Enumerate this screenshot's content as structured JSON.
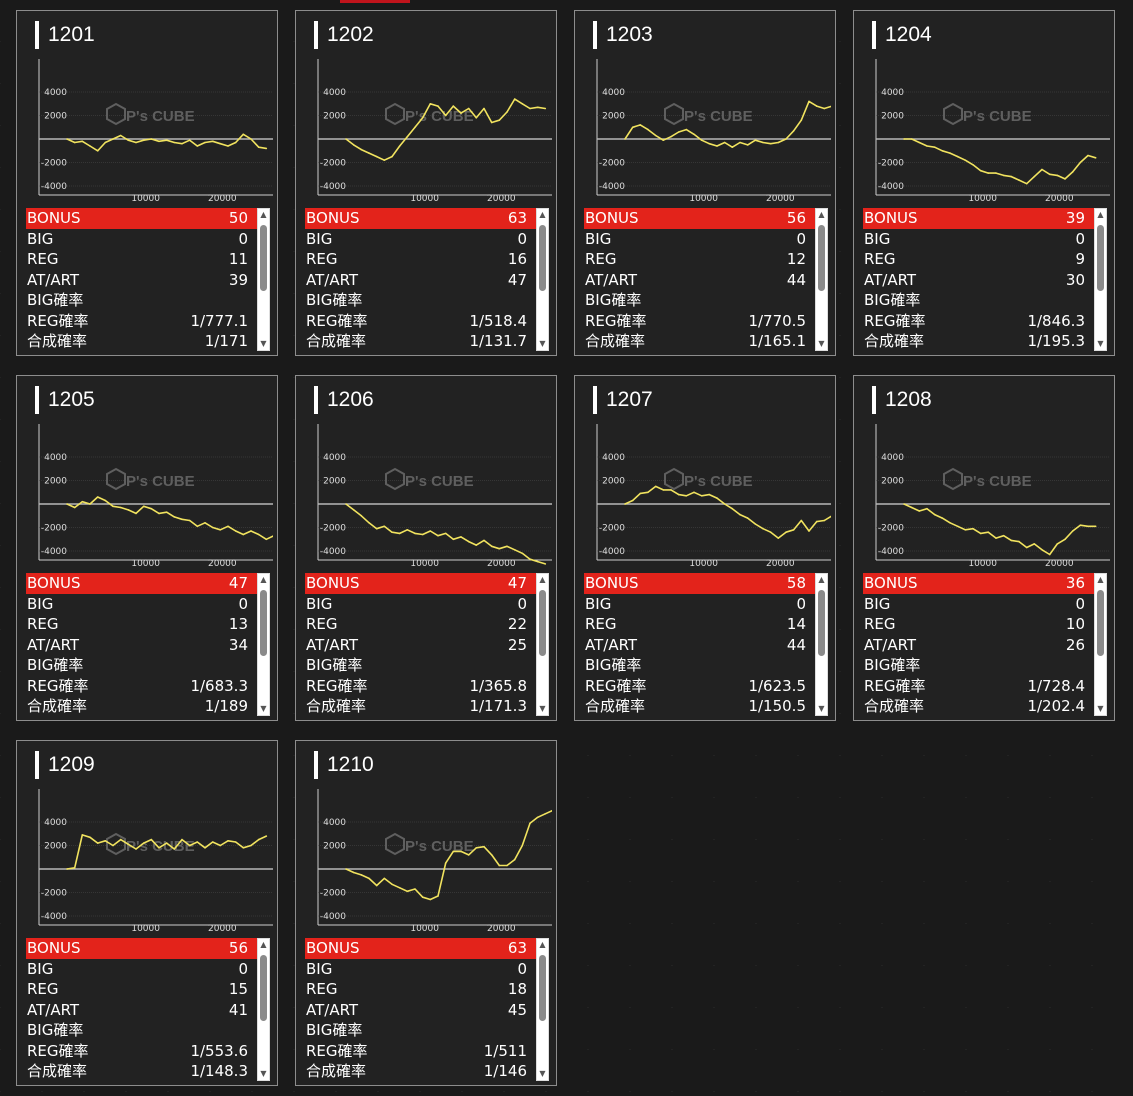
{
  "watermark": "P's CUBE",
  "accent": "#e3231b",
  "line_color": "#f1e35f",
  "labels": {
    "bonus": "BONUS",
    "big": "BIG",
    "reg": "REG",
    "atart": "AT/ART",
    "big_rate": "BIG確率",
    "reg_rate": "REG確率",
    "total_rate": "合成確率"
  },
  "y_ticks": [
    "4000",
    "2000",
    "-2000",
    "-4000"
  ],
  "x_ticks": [
    "10000",
    "20000"
  ],
  "machines": [
    {
      "id": "1201",
      "bonus": "50",
      "big": "0",
      "reg": "11",
      "atart": "39",
      "big_rate": "",
      "reg_rate": "1/777.1",
      "total_rate": "1/171"
    },
    {
      "id": "1202",
      "bonus": "63",
      "big": "0",
      "reg": "16",
      "atart": "47",
      "big_rate": "",
      "reg_rate": "1/518.4",
      "total_rate": "1/131.7"
    },
    {
      "id": "1203",
      "bonus": "56",
      "big": "0",
      "reg": "12",
      "atart": "44",
      "big_rate": "",
      "reg_rate": "1/770.5",
      "total_rate": "1/165.1"
    },
    {
      "id": "1204",
      "bonus": "39",
      "big": "0",
      "reg": "9",
      "atart": "30",
      "big_rate": "",
      "reg_rate": "1/846.3",
      "total_rate": "1/195.3"
    },
    {
      "id": "1205",
      "bonus": "47",
      "big": "0",
      "reg": "13",
      "atart": "34",
      "big_rate": "",
      "reg_rate": "1/683.3",
      "total_rate": "1/189"
    },
    {
      "id": "1206",
      "bonus": "47",
      "big": "0",
      "reg": "22",
      "atart": "25",
      "big_rate": "",
      "reg_rate": "1/365.8",
      "total_rate": "1/171.3"
    },
    {
      "id": "1207",
      "bonus": "58",
      "big": "0",
      "reg": "14",
      "atart": "44",
      "big_rate": "",
      "reg_rate": "1/623.5",
      "total_rate": "1/150.5"
    },
    {
      "id": "1208",
      "bonus": "36",
      "big": "0",
      "reg": "10",
      "atart": "26",
      "big_rate": "",
      "reg_rate": "1/728.4",
      "total_rate": "1/202.4"
    },
    {
      "id": "1209",
      "bonus": "56",
      "big": "0",
      "reg": "15",
      "atart": "41",
      "big_rate": "",
      "reg_rate": "1/553.6",
      "total_rate": "1/148.3"
    },
    {
      "id": "1210",
      "bonus": "63",
      "big": "0",
      "reg": "18",
      "atart": "45",
      "big_rate": "",
      "reg_rate": "1/511",
      "total_rate": "1/146"
    }
  ],
  "chart_data": [
    {
      "type": "line",
      "title": "1201",
      "xlim": [
        0,
        30000
      ],
      "ylim": [
        -5000,
        5000
      ],
      "x": [
        0,
        1000,
        2000,
        3000,
        4000,
        5000,
        6000,
        7000,
        8000,
        9000,
        10000,
        11000,
        12000,
        13000,
        14000,
        15000,
        16000,
        17000,
        18000,
        19000,
        20000,
        21000,
        22000,
        23000,
        24000,
        25000,
        26000
      ],
      "y": [
        0,
        -300,
        -200,
        -600,
        -1000,
        -300,
        0,
        300,
        -100,
        -300,
        -100,
        0,
        -200,
        -100,
        -300,
        -400,
        -100,
        -600,
        -300,
        -200,
        -400,
        -600,
        -300,
        400,
        0,
        -700,
        -800
      ]
    },
    {
      "type": "line",
      "title": "1202",
      "xlim": [
        0,
        30000
      ],
      "ylim": [
        -5000,
        5000
      ],
      "x": [
        0,
        1000,
        2000,
        3000,
        4000,
        5000,
        6000,
        7000,
        8000,
        9000,
        10000,
        11000,
        12000,
        13000,
        14000,
        15000,
        16000,
        17000,
        18000,
        19000,
        20000,
        21000,
        22000,
        23000,
        24000,
        25000,
        26000
      ],
      "y": [
        0,
        -500,
        -900,
        -1200,
        -1500,
        -1800,
        -1500,
        -600,
        200,
        1000,
        1800,
        3000,
        2800,
        2000,
        2800,
        2200,
        2600,
        1800,
        2600,
        1400,
        1600,
        2300,
        3400,
        3000,
        2600,
        2700,
        2600
      ]
    },
    {
      "type": "line",
      "title": "1203",
      "xlim": [
        0,
        30000
      ],
      "ylim": [
        -5000,
        5000
      ],
      "x": [
        0,
        1000,
        2000,
        3000,
        4000,
        5000,
        6000,
        7000,
        8000,
        9000,
        10000,
        11000,
        12000,
        13000,
        14000,
        15000,
        16000,
        17000,
        18000,
        19000,
        20000,
        21000,
        22000,
        23000,
        24000,
        25000,
        26000,
        27000,
        28000
      ],
      "y": [
        0,
        1000,
        1200,
        800,
        300,
        -100,
        200,
        600,
        800,
        400,
        -100,
        -400,
        -600,
        -300,
        -700,
        -300,
        -500,
        -100,
        -300,
        -400,
        -300,
        0,
        700,
        1600,
        3200,
        2800,
        2600,
        2800,
        3000
      ]
    },
    {
      "type": "line",
      "title": "1204",
      "xlim": [
        0,
        30000
      ],
      "ylim": [
        -5000,
        5000
      ],
      "x": [
        0,
        1000,
        2000,
        3000,
        4000,
        5000,
        6000,
        7000,
        8000,
        9000,
        10000,
        11000,
        12000,
        13000,
        14000,
        15000,
        16000,
        17000,
        18000,
        19000,
        20000,
        21000,
        22000,
        23000,
        24000,
        25000
      ],
      "y": [
        0,
        0,
        -300,
        -600,
        -700,
        -1000,
        -1200,
        -1500,
        -1800,
        -2200,
        -2700,
        -2900,
        -2900,
        -3100,
        -3200,
        -3500,
        -3800,
        -3200,
        -2600,
        -3000,
        -3100,
        -3400,
        -2800,
        -2000,
        -1400,
        -1600
      ]
    },
    {
      "type": "line",
      "title": "1205",
      "xlim": [
        0,
        30000
      ],
      "ylim": [
        -5000,
        5000
      ],
      "x": [
        0,
        1000,
        2000,
        3000,
        4000,
        5000,
        6000,
        7000,
        8000,
        9000,
        10000,
        11000,
        12000,
        13000,
        14000,
        15000,
        16000,
        17000,
        18000,
        19000,
        20000,
        21000,
        22000,
        23000,
        24000,
        25000,
        26000,
        27000
      ],
      "y": [
        0,
        -300,
        200,
        0,
        600,
        300,
        -200,
        -300,
        -500,
        -800,
        -200,
        -400,
        -800,
        -700,
        -1100,
        -1300,
        -1400,
        -1900,
        -1600,
        -2000,
        -2200,
        -1900,
        -2300,
        -2600,
        -2300,
        -2600,
        -3000,
        -2700
      ]
    },
    {
      "type": "line",
      "title": "1206",
      "xlim": [
        0,
        30000
      ],
      "ylim": [
        -5000,
        5000
      ],
      "x": [
        0,
        1000,
        2000,
        3000,
        4000,
        5000,
        6000,
        7000,
        8000,
        9000,
        10000,
        11000,
        12000,
        13000,
        14000,
        15000,
        16000,
        17000,
        18000,
        19000,
        20000,
        21000,
        22000,
        23000,
        24000,
        25000,
        26000
      ],
      "y": [
        0,
        -500,
        -1000,
        -1600,
        -2100,
        -1900,
        -2400,
        -2500,
        -2200,
        -2500,
        -2600,
        -2300,
        -2700,
        -2500,
        -3000,
        -2800,
        -3200,
        -3500,
        -3100,
        -3600,
        -3800,
        -3600,
        -3900,
        -4200,
        -4700,
        -4900,
        -5100
      ]
    },
    {
      "type": "line",
      "title": "1207",
      "xlim": [
        0,
        30000
      ],
      "ylim": [
        -5000,
        5000
      ],
      "x": [
        0,
        1000,
        2000,
        3000,
        4000,
        5000,
        6000,
        7000,
        8000,
        9000,
        10000,
        11000,
        12000,
        13000,
        14000,
        15000,
        16000,
        17000,
        18000,
        19000,
        20000,
        21000,
        22000,
        23000,
        24000,
        25000,
        26000,
        27000
      ],
      "y": [
        0,
        300,
        900,
        1000,
        1500,
        1200,
        1200,
        800,
        700,
        1000,
        700,
        800,
        500,
        0,
        -400,
        -900,
        -1200,
        -1700,
        -2100,
        -2400,
        -2900,
        -2400,
        -2200,
        -1400,
        -2300,
        -1500,
        -1400,
        -1000
      ]
    },
    {
      "type": "line",
      "title": "1208",
      "xlim": [
        0,
        30000
      ],
      "ylim": [
        -5000,
        5000
      ],
      "x": [
        0,
        1000,
        2000,
        3000,
        4000,
        5000,
        6000,
        7000,
        8000,
        9000,
        10000,
        11000,
        12000,
        13000,
        14000,
        15000,
        16000,
        17000,
        18000,
        19000,
        20000,
        21000,
        22000,
        23000,
        24000,
        25000
      ],
      "y": [
        0,
        -300,
        -600,
        -400,
        -900,
        -1200,
        -1600,
        -1900,
        -2200,
        -2100,
        -2500,
        -2400,
        -2900,
        -2700,
        -3100,
        -3200,
        -3700,
        -3400,
        -3900,
        -4300,
        -3400,
        -3000,
        -2300,
        -1800,
        -1900,
        -1900
      ]
    },
    {
      "type": "line",
      "title": "1209",
      "xlim": [
        0,
        30000
      ],
      "ylim": [
        -5000,
        5000
      ],
      "x": [
        0,
        1000,
        2000,
        3000,
        4000,
        5000,
        6000,
        7000,
        8000,
        9000,
        10000,
        11000,
        12000,
        13000,
        14000,
        15000,
        16000,
        17000,
        18000,
        19000,
        20000,
        21000,
        22000,
        23000,
        24000,
        25000,
        26000
      ],
      "y": [
        0,
        100,
        2900,
        2700,
        2200,
        2400,
        2000,
        2500,
        2100,
        1700,
        2200,
        2500,
        1800,
        2200,
        1700,
        2500,
        2000,
        2300,
        1800,
        2300,
        2000,
        2400,
        2300,
        1800,
        2000,
        2500,
        2800
      ]
    },
    {
      "type": "line",
      "title": "1210",
      "xlim": [
        0,
        30000
      ],
      "ylim": [
        -5000,
        5000
      ],
      "x": [
        0,
        1000,
        2000,
        3000,
        4000,
        5000,
        6000,
        7000,
        8000,
        9000,
        10000,
        11000,
        12000,
        13000,
        14000,
        15000,
        16000,
        17000,
        18000,
        19000,
        20000,
        21000,
        22000,
        23000,
        24000,
        25000,
        26000,
        27000,
        28000
      ],
      "y": [
        0,
        -300,
        -500,
        -800,
        -1400,
        -800,
        -1300,
        -1600,
        -1900,
        -1700,
        -2400,
        -2600,
        -2300,
        500,
        1500,
        1500,
        1200,
        1800,
        1900,
        1200,
        300,
        300,
        800,
        2000,
        3900,
        4400,
        4700,
        5000,
        4800
      ]
    }
  ]
}
